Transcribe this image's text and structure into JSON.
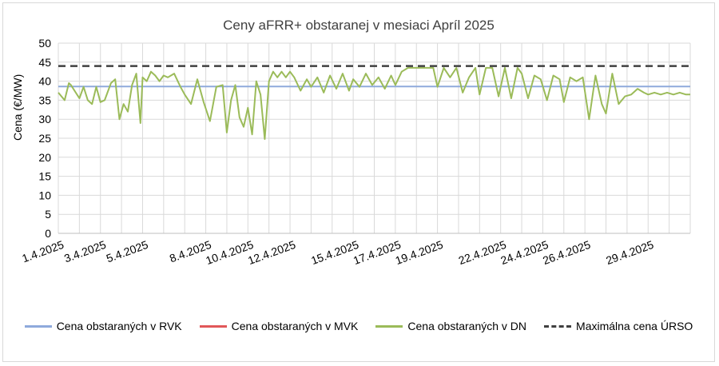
{
  "chart_data": {
    "type": "line",
    "title": "Ceny aFRR+ obstaranej v mesiaci Apríl 2025",
    "ylabel": "Cena (€/MW)",
    "xlabel": "",
    "ylim": [
      0,
      50
    ],
    "yticks": [
      0,
      5,
      10,
      15,
      20,
      25,
      30,
      35,
      40,
      45,
      50
    ],
    "grid": true,
    "legend_position": "bottom",
    "x_tick_labels": [
      "1.4.2025",
      "3.4.2025",
      "5.4.2025",
      "8.4.2025",
      "10.4.2025",
      "12.4.2025",
      "15.4.2025",
      "17.4.2025",
      "19.4.2025",
      "22.4.2025",
      "24.4.2025",
      "26.4.2025",
      "29.4.2025"
    ],
    "x_tick_days": [
      1,
      3,
      5,
      8,
      10,
      12,
      15,
      17,
      19,
      22,
      24,
      26,
      29
    ],
    "x_range_days": [
      1,
      31
    ],
    "series": [
      {
        "name": "Cena obstaraných v RVK",
        "color": "#8faadc",
        "style": "solid",
        "x": [
          1,
          31
        ],
        "y": [
          38.6,
          38.6
        ]
      },
      {
        "name": "Cena obstaraných v MVK",
        "color": "#e15759",
        "style": "solid",
        "x": [],
        "y": []
      },
      {
        "name": "Cena obstaraných v DN",
        "color": "#9bbb59",
        "style": "solid",
        "x": [
          1,
          1.3,
          1.5,
          1.6,
          2.0,
          2.2,
          2.4,
          2.6,
          2.8,
          3.0,
          3.2,
          3.5,
          3.7,
          3.9,
          4.1,
          4.3,
          4.5,
          4.7,
          4.9,
          5.0,
          5.2,
          5.4,
          5.6,
          5.8,
          6.0,
          6.2,
          6.5,
          6.8,
          7.0,
          7.3,
          7.6,
          7.9,
          8.2,
          8.5,
          8.8,
          9.0,
          9.2,
          9.4,
          9.6,
          9.8,
          10.0,
          10.2,
          10.4,
          10.6,
          10.8,
          11.0,
          11.2,
          11.4,
          11.6,
          11.8,
          12.0,
          12.2,
          12.5,
          12.8,
          13.0,
          13.3,
          13.6,
          13.9,
          14.2,
          14.5,
          14.8,
          15.0,
          15.3,
          15.6,
          15.9,
          16.2,
          16.5,
          16.8,
          17.0,
          17.3,
          17.6,
          17.9,
          18.2,
          18.5,
          18.8,
          19.0,
          19.3,
          19.6,
          19.9,
          20.2,
          20.5,
          20.8,
          21.0,
          21.3,
          21.6,
          21.9,
          22.2,
          22.5,
          22.8,
          23.0,
          23.3,
          23.6,
          23.9,
          24.2,
          24.5,
          24.8,
          25.0,
          25.3,
          25.6,
          25.9,
          26.2,
          26.5,
          26.8,
          27.0,
          27.3,
          27.6,
          27.9,
          28.2,
          28.5,
          28.8,
          29.0,
          29.3,
          29.6,
          29.9,
          30.2,
          30.5,
          30.8,
          31.0
        ],
        "y": [
          37,
          35,
          39.5,
          39,
          35.5,
          38.5,
          35,
          34,
          38.5,
          34.5,
          35,
          39.5,
          40.5,
          30,
          34,
          32,
          39,
          42,
          29,
          41,
          40,
          42.5,
          41.5,
          40,
          41.5,
          41,
          42,
          38.5,
          36.5,
          34,
          40.5,
          34.5,
          29.5,
          38.5,
          39,
          26.5,
          35,
          39,
          30.5,
          28,
          33,
          26,
          40,
          36.5,
          24.8,
          40,
          42.5,
          41,
          42.5,
          41,
          42.5,
          41,
          37.5,
          40.5,
          38.5,
          41,
          37,
          41.5,
          38,
          42,
          37.5,
          40.5,
          38.5,
          42,
          39,
          41,
          38,
          41.5,
          39,
          42.5,
          43.5,
          43.5,
          43.5,
          43.5,
          43.5,
          38.5,
          43.5,
          41,
          43.5,
          37,
          41,
          43.5,
          36.5,
          43.5,
          43.5,
          36,
          43.5,
          35.5,
          43.5,
          42,
          35.5,
          41.5,
          40.5,
          35,
          41.5,
          40.5,
          34.5,
          41,
          40,
          41,
          30,
          41.5,
          34,
          31.5,
          42,
          34,
          36,
          36.5,
          38,
          37,
          36.5,
          37,
          36.5,
          37,
          36.5,
          37,
          36.5,
          36.5
        ]
      },
      {
        "name": "Maximálna cena ÚRSO",
        "color": "#404040",
        "style": "dashed",
        "x": [
          1,
          31
        ],
        "y": [
          44,
          44
        ]
      }
    ]
  }
}
